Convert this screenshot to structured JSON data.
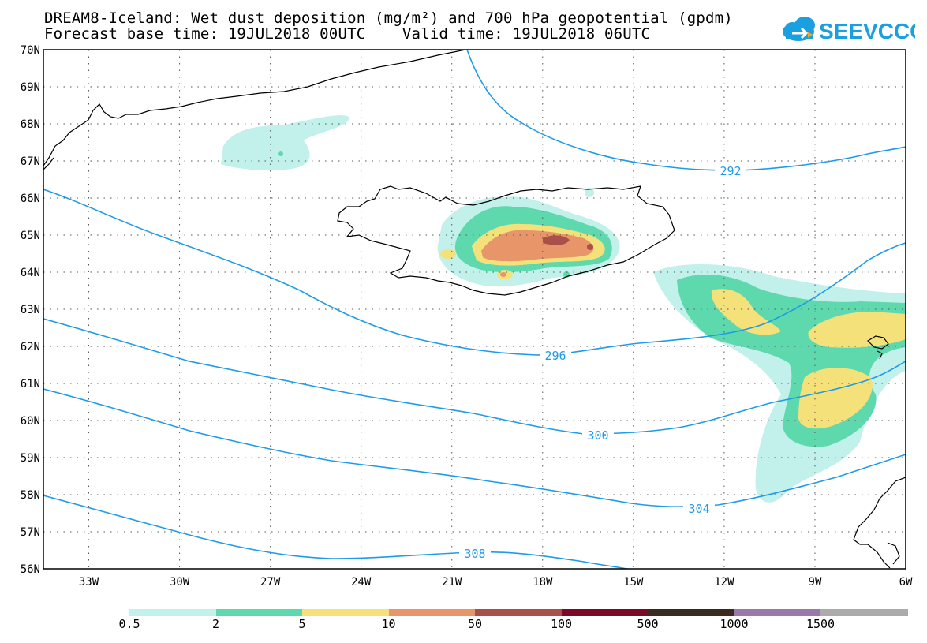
{
  "title": {
    "line1": "DREAM8-Iceland: Wet dust deposition (mg/m²) and 700 hPa geopotential (gpdm)",
    "line2": "Forecast base time: 19JUL2018 00UTC    Valid time: 19JUL2018 06UTC"
  },
  "logo": {
    "text": "SEEVCCC",
    "brand_color": "#1a9fe0",
    "accent_color": "#f5a623",
    "icon": "cloud-icon"
  },
  "map": {
    "region": "North Atlantic / Iceland",
    "lat_range": [
      56,
      70
    ],
    "lon_range": [
      -34.5,
      -6
    ],
    "lat_labels": [
      "70N",
      "69N",
      "68N",
      "67N",
      "66N",
      "65N",
      "64N",
      "63N",
      "62N",
      "61N",
      "60N",
      "59N",
      "58N",
      "57N",
      "56N"
    ],
    "lon_labels": [
      "33W",
      "30W",
      "27W",
      "24W",
      "21W",
      "18W",
      "15W",
      "12W",
      "9W",
      "6W"
    ],
    "grid": "dotted",
    "geopotential_color": "#1e9be9",
    "geopotential_labels": [
      "292",
      "296",
      "300",
      "304",
      "308"
    ]
  },
  "legend": {
    "entries": [
      {
        "label": "0.5",
        "color": "#c2f0ea"
      },
      {
        "label": "2",
        "color": "#5dd9ad"
      },
      {
        "label": "5",
        "color": "#f5e17a"
      },
      {
        "label": "10",
        "color": "#e8956a"
      },
      {
        "label": "50",
        "color": "#a9504a"
      },
      {
        "label": "100",
        "color": "#7a0a25"
      },
      {
        "label": "500",
        "color": "#3b2a1e"
      },
      {
        "label": "1000",
        "color": "#9a79a8"
      },
      {
        "label": "1500",
        "color": "#ababab"
      }
    ]
  }
}
